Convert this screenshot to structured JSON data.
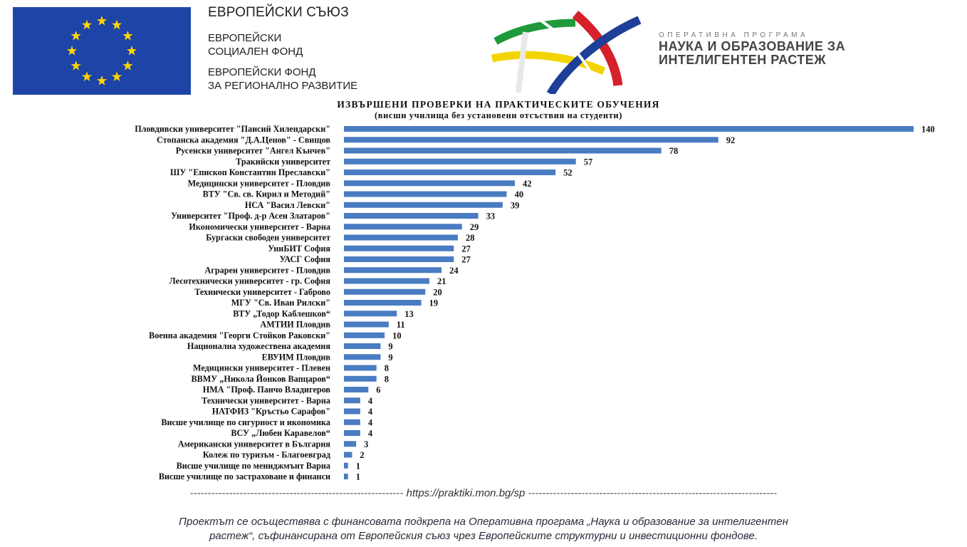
{
  "header": {
    "eu_title": "ЕВРОПЕЙСКИ СЪЮЗ",
    "eu_lines": [
      "ЕВРОПЕЙСКИ",
      "СОЦИАЛЕН ФОНД",
      "ЕВРОПЕЙСКИ ФОНД",
      "ЗА РЕГИОНАЛНО РАЗВИТИЕ"
    ],
    "op_pre": "ОПЕРАТИВНА ПРОГРАМА",
    "op_lines": [
      "НАУКА И ОБРАЗОВАНИЕ ЗА",
      "ИНТЕЛИГЕНТЕН РАСТЕЖ"
    ]
  },
  "chart_data": {
    "type": "bar",
    "orientation": "horizontal",
    "title": "ИЗВЪРШЕНИ ПРОВЕРКИ НА ПРАКТИЧЕСКИТЕ ОБУЧЕНИЯ",
    "subtitle": "(висши училища без установени отсъствия на студенти)",
    "bar_color": "#4a7cc2",
    "grid": false,
    "categories": [
      "Пловдивски университет \"Паисий Хилендарски\"",
      "Стопанска академия \"Д.А.Ценов\" - Свищов",
      "Русенски университет \"Ангел Кънчев\"",
      "Тракийски университет",
      "ШУ \"Епископ Константин Преславски\"",
      "Медицински университет - Пловдив",
      "ВТУ \"Св. св. Кирил и Методий\"",
      "НСА \"Васил Левски\"",
      "Университет \"Проф. д-р Асен Златаров\"",
      "Икономически университет - Варна",
      "Бургаски свободен университет",
      "УниБИТ София",
      "УАСГ София",
      "Аграрен университет - Пловдив",
      "Лесотехнически университет - гр. София",
      "Технически университет - Габрово",
      "МГУ \"Св. Иван Рилски\"",
      "ВТУ „Тодор Каблешков“",
      "АМТИИ Пловдив",
      "Военна академия \"Георги Стойков Раковски\"",
      "Национална художествена академия",
      "ЕВУИМ Пловдив",
      "Медицински университет - Плевен",
      "ВВМУ „Никола Йонков Вапцаров“",
      "НМА \"Проф. Панчо Владигеров",
      "Технически университет - Варна",
      "НАТФИЗ \"Кръстьо Сарафов\"",
      "Висше училище по сигурност и икономика",
      "ВСУ „Любен Каравелов“",
      "Американски университет в България",
      "Колеж по туризъм - Благоевград",
      "Висше училище по мениджмънт Варна",
      "Висше училище по застраховане и финанси"
    ],
    "values": [
      140,
      92,
      78,
      57,
      52,
      42,
      40,
      39,
      33,
      29,
      28,
      27,
      27,
      24,
      21,
      20,
      19,
      13,
      11,
      10,
      9,
      9,
      8,
      8,
      6,
      4,
      4,
      4,
      4,
      3,
      2,
      1,
      1
    ]
  },
  "footer": {
    "dashes_left": "------------------------------------------------------------",
    "url": "https://praktiki.mon.bg/sp",
    "dashes_right": "----------------------------------------------------------------------",
    "note_line1": "Проектът се осъществява с финансовата подкрепа на Оперативна програма „Наука и образование за интелигентен",
    "note_line2": "растеж“, съфинансирана от Европейския съюз чрез Европейските структурни и инвестиционни фондове."
  }
}
